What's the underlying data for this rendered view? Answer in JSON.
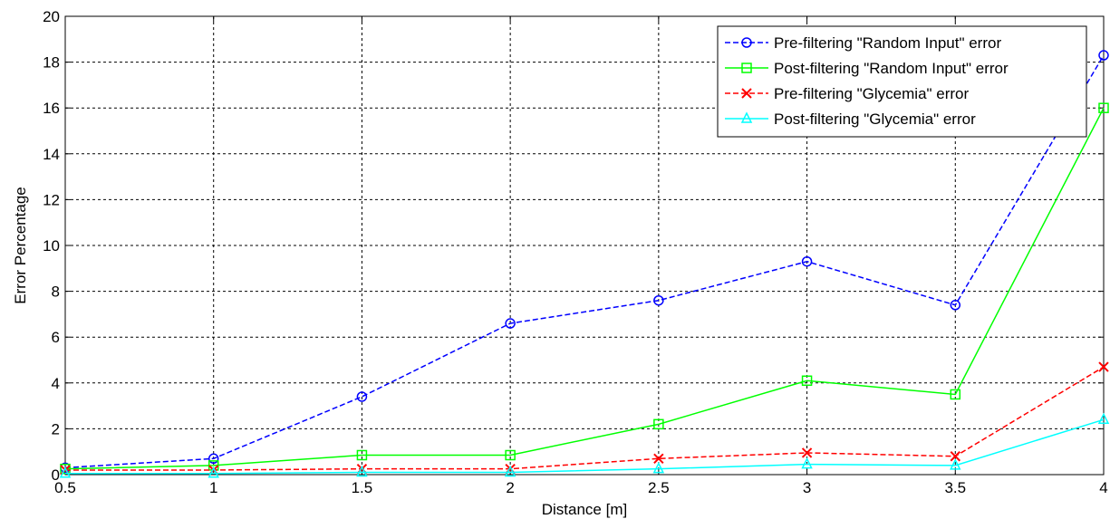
{
  "chart_data": {
    "type": "line",
    "title": "",
    "xlabel": "Distance [m]",
    "ylabel": "Error Percentage",
    "xlim": [
      0.5,
      4
    ],
    "ylim": [
      0,
      20
    ],
    "x_ticks": [
      "0.5",
      "1",
      "1.5",
      "2",
      "2.5",
      "3",
      "3.5",
      "4"
    ],
    "y_ticks": [
      "0",
      "2",
      "4",
      "6",
      "8",
      "10",
      "12",
      "14",
      "16",
      "18",
      "20"
    ],
    "grid": true,
    "legend_position": "top-right",
    "x": [
      0.5,
      1,
      1.5,
      2,
      2.5,
      3,
      3.5,
      4
    ],
    "series": [
      {
        "name": "Pre-filtering \"Random Input\" error",
        "values": [
          0.3,
          0.7,
          3.4,
          6.6,
          7.6,
          9.3,
          7.4,
          18.3
        ],
        "color": "#0000ff",
        "line_style": "dashed",
        "marker": "circle"
      },
      {
        "name": "Post-filtering \"Random Input\" error",
        "values": [
          0.25,
          0.4,
          0.85,
          0.85,
          2.2,
          4.1,
          3.5,
          16.0
        ],
        "color": "#00ff00",
        "line_style": "solid",
        "marker": "square"
      },
      {
        "name": "Pre-filtering \"Glycemia\" error",
        "values": [
          0.2,
          0.2,
          0.25,
          0.25,
          0.7,
          0.95,
          0.8,
          4.7
        ],
        "color": "#ff0000",
        "line_style": "dashed",
        "marker": "x"
      },
      {
        "name": "Post-filtering \"Glycemia\" error",
        "values": [
          0.05,
          0.05,
          0.1,
          0.1,
          0.25,
          0.45,
          0.4,
          2.4
        ],
        "color": "#00ffff",
        "line_style": "solid",
        "marker": "triangle"
      }
    ]
  }
}
